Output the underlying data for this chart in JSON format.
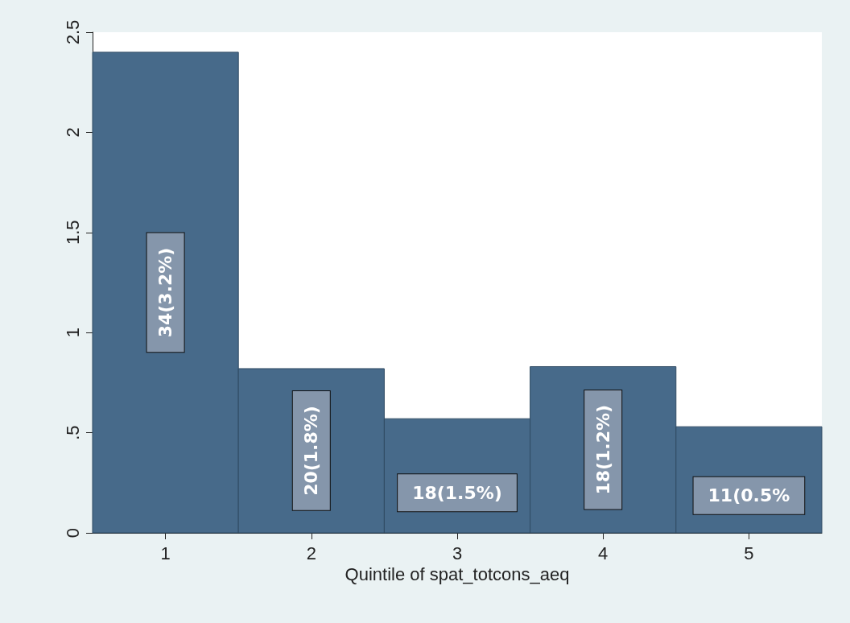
{
  "chart_data": {
    "type": "histogram",
    "xlabel": "Quintile of spat_totcons_aeq",
    "bins": [
      0.5,
      1.5,
      2.5,
      3.5,
      4.5,
      5.5
    ],
    "values": [
      2.4,
      0.82,
      0.57,
      0.83,
      0.53
    ],
    "annotations": [
      "34(3.2%)",
      "20(1.8%)",
      "18(1.5%)",
      "18(1.2%)",
      "11(0.5%"
    ],
    "color": "#476a8a",
    "xlim": [
      0.5,
      5.5
    ],
    "xticks": [
      1,
      2,
      3,
      4,
      5
    ],
    "ylim": [
      0,
      2.5
    ],
    "yticks": [
      0,
      {
        "value": 0.5,
        "label": ".5"
      },
      1,
      1.5,
      2,
      2.5
    ],
    "grid": false
  }
}
